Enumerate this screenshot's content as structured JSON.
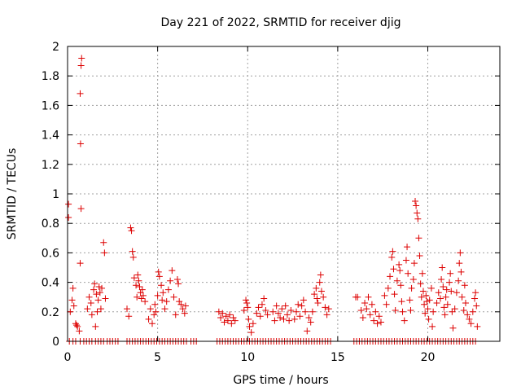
{
  "chart_data": {
    "type": "scatter",
    "title": "Day 221 of 2022, SRMTID for receiver djig",
    "xlabel": "GPS time / hours",
    "ylabel": "SRMTID / TECUs",
    "xlim": [
      0,
      24
    ],
    "ylim": [
      0,
      2
    ],
    "xticks": [
      0,
      5,
      10,
      15,
      20
    ],
    "xtick_labels": [
      "0",
      "5",
      "10",
      "15",
      "20"
    ],
    "yticks": [
      0,
      0.2,
      0.4,
      0.6,
      0.8,
      1,
      1.2,
      1.4,
      1.6,
      1.8,
      2
    ],
    "ytick_labels": [
      "0",
      "0.2",
      "0.4",
      "0.6",
      "0.8",
      "1",
      "1.2",
      "1.4",
      "1.6",
      "1.8",
      "2"
    ],
    "grid": true,
    "marker": "+",
    "color": "#dd0000",
    "series": [
      {
        "name": "SRMTID",
        "points": [
          [
            0.05,
            0.93
          ],
          [
            0.05,
            0.84
          ],
          [
            0.15,
            0.2
          ],
          [
            0.25,
            0.28
          ],
          [
            0.3,
            0.36
          ],
          [
            0.35,
            0.24
          ],
          [
            0.45,
            0.12
          ],
          [
            0.5,
            0.11
          ],
          [
            0.55,
            0.1
          ],
          [
            0.65,
            0.07
          ],
          [
            0.7,
            1.68
          ],
          [
            0.72,
            1.34
          ],
          [
            0.75,
            1.87
          ],
          [
            0.78,
            1.92
          ],
          [
            0.75,
            0.9
          ],
          [
            0.7,
            0.53
          ],
          [
            1.1,
            0.22
          ],
          [
            1.2,
            0.3
          ],
          [
            1.3,
            0.26
          ],
          [
            1.35,
            0.18
          ],
          [
            1.45,
            0.35
          ],
          [
            1.5,
            0.39
          ],
          [
            1.55,
            0.1
          ],
          [
            1.6,
            0.32
          ],
          [
            1.65,
            0.2
          ],
          [
            1.7,
            0.28
          ],
          [
            1.75,
            0.37
          ],
          [
            1.8,
            0.33
          ],
          [
            1.85,
            0.22
          ],
          [
            1.9,
            0.36
          ],
          [
            2.0,
            0.67
          ],
          [
            2.05,
            0.6
          ],
          [
            2.1,
            0.29
          ],
          [
            3.3,
            0.22
          ],
          [
            3.4,
            0.17
          ],
          [
            3.5,
            0.77
          ],
          [
            3.55,
            0.75
          ],
          [
            3.6,
            0.61
          ],
          [
            3.65,
            0.57
          ],
          [
            3.7,
            0.43
          ],
          [
            3.8,
            0.38
          ],
          [
            3.85,
            0.3
          ],
          [
            3.9,
            0.45
          ],
          [
            3.95,
            0.41
          ],
          [
            4.0,
            0.37
          ],
          [
            4.05,
            0.33
          ],
          [
            4.1,
            0.29
          ],
          [
            4.15,
            0.35
          ],
          [
            4.2,
            0.31
          ],
          [
            4.3,
            0.27
          ],
          [
            4.5,
            0.15
          ],
          [
            4.6,
            0.22
          ],
          [
            4.7,
            0.12
          ],
          [
            4.8,
            0.18
          ],
          [
            4.85,
            0.25
          ],
          [
            4.9,
            0.2
          ],
          [
            5.0,
            0.31
          ],
          [
            5.05,
            0.47
          ],
          [
            5.1,
            0.44
          ],
          [
            5.2,
            0.38
          ],
          [
            5.25,
            0.28
          ],
          [
            5.3,
            0.33
          ],
          [
            5.4,
            0.22
          ],
          [
            5.5,
            0.27
          ],
          [
            5.6,
            0.35
          ],
          [
            5.7,
            0.41
          ],
          [
            5.8,
            0.48
          ],
          [
            5.9,
            0.3
          ],
          [
            6.0,
            0.18
          ],
          [
            6.1,
            0.42
          ],
          [
            6.15,
            0.39
          ],
          [
            6.2,
            0.27
          ],
          [
            6.3,
            0.25
          ],
          [
            6.4,
            0.22
          ],
          [
            6.5,
            0.19
          ],
          [
            6.55,
            0.24
          ],
          [
            8.4,
            0.2
          ],
          [
            8.5,
            0.16
          ],
          [
            8.6,
            0.19
          ],
          [
            8.7,
            0.13
          ],
          [
            8.8,
            0.17
          ],
          [
            8.9,
            0.14
          ],
          [
            9.0,
            0.18
          ],
          [
            9.1,
            0.12
          ],
          [
            9.2,
            0.16
          ],
          [
            9.3,
            0.14
          ],
          [
            9.8,
            0.21
          ],
          [
            9.9,
            0.28
          ],
          [
            9.95,
            0.26
          ],
          [
            10.0,
            0.23
          ],
          [
            10.05,
            0.15
          ],
          [
            10.1,
            0.1
          ],
          [
            10.2,
            0.06
          ],
          [
            10.3,
            0.12
          ],
          [
            10.5,
            0.19
          ],
          [
            10.6,
            0.23
          ],
          [
            10.7,
            0.17
          ],
          [
            10.8,
            0.25
          ],
          [
            10.9,
            0.29
          ],
          [
            11.0,
            0.21
          ],
          [
            11.1,
            0.18
          ],
          [
            11.4,
            0.2
          ],
          [
            11.5,
            0.14
          ],
          [
            11.6,
            0.24
          ],
          [
            11.7,
            0.19
          ],
          [
            11.8,
            0.16
          ],
          [
            11.9,
            0.22
          ],
          [
            12.0,
            0.15
          ],
          [
            12.1,
            0.24
          ],
          [
            12.2,
            0.18
          ],
          [
            12.3,
            0.14
          ],
          [
            12.4,
            0.21
          ],
          [
            12.6,
            0.15
          ],
          [
            12.7,
            0.2
          ],
          [
            12.8,
            0.25
          ],
          [
            12.9,
            0.17
          ],
          [
            13.0,
            0.24
          ],
          [
            13.1,
            0.28
          ],
          [
            13.2,
            0.2
          ],
          [
            13.3,
            0.07
          ],
          [
            13.4,
            0.16
          ],
          [
            13.5,
            0.13
          ],
          [
            13.6,
            0.2
          ],
          [
            13.7,
            0.32
          ],
          [
            13.8,
            0.36
          ],
          [
            13.85,
            0.29
          ],
          [
            13.9,
            0.26
          ],
          [
            14.0,
            0.4
          ],
          [
            14.05,
            0.45
          ],
          [
            14.1,
            0.34
          ],
          [
            14.2,
            0.3
          ],
          [
            14.3,
            0.23
          ],
          [
            14.4,
            0.18
          ],
          [
            14.5,
            0.22
          ],
          [
            16.0,
            0.3
          ],
          [
            16.1,
            0.3
          ],
          [
            16.3,
            0.21
          ],
          [
            16.4,
            0.16
          ],
          [
            16.5,
            0.26
          ],
          [
            16.6,
            0.22
          ],
          [
            16.7,
            0.3
          ],
          [
            16.8,
            0.18
          ],
          [
            16.9,
            0.25
          ],
          [
            17.0,
            0.14
          ],
          [
            17.1,
            0.2
          ],
          [
            17.2,
            0.12
          ],
          [
            17.3,
            0.17
          ],
          [
            17.4,
            0.13
          ],
          [
            17.6,
            0.31
          ],
          [
            17.7,
            0.25
          ],
          [
            17.8,
            0.36
          ],
          [
            17.9,
            0.44
          ],
          [
            18.0,
            0.57
          ],
          [
            18.05,
            0.61
          ],
          [
            18.1,
            0.49
          ],
          [
            18.15,
            0.32
          ],
          [
            18.2,
            0.21
          ],
          [
            18.3,
            0.41
          ],
          [
            18.4,
            0.52
          ],
          [
            18.45,
            0.48
          ],
          [
            18.5,
            0.38
          ],
          [
            18.55,
            0.27
          ],
          [
            18.6,
            0.2
          ],
          [
            18.7,
            0.14
          ],
          [
            18.8,
            0.55
          ],
          [
            18.85,
            0.64
          ],
          [
            18.9,
            0.46
          ],
          [
            19.0,
            0.28
          ],
          [
            19.05,
            0.21
          ],
          [
            19.1,
            0.36
          ],
          [
            19.2,
            0.42
          ],
          [
            19.25,
            0.53
          ],
          [
            19.3,
            0.95
          ],
          [
            19.35,
            0.92
          ],
          [
            19.4,
            0.87
          ],
          [
            19.45,
            0.83
          ],
          [
            19.5,
            0.7
          ],
          [
            19.55,
            0.58
          ],
          [
            19.6,
            0.39
          ],
          [
            19.65,
            0.3
          ],
          [
            19.7,
            0.46
          ],
          [
            19.75,
            0.34
          ],
          [
            19.8,
            0.25
          ],
          [
            19.85,
            0.19
          ],
          [
            19.9,
            0.31
          ],
          [
            19.95,
            0.27
          ],
          [
            20.0,
            0.22
          ],
          [
            20.05,
            0.15
          ],
          [
            20.1,
            0.28
          ],
          [
            20.2,
            0.36
          ],
          [
            20.25,
            0.1
          ],
          [
            20.3,
            0.2
          ],
          [
            20.5,
            0.26
          ],
          [
            20.6,
            0.33
          ],
          [
            20.7,
            0.29
          ],
          [
            20.75,
            0.42
          ],
          [
            20.8,
            0.5
          ],
          [
            20.85,
            0.37
          ],
          [
            20.9,
            0.23
          ],
          [
            20.95,
            0.18
          ],
          [
            21.0,
            0.3
          ],
          [
            21.05,
            0.35
          ],
          [
            21.1,
            0.25
          ],
          [
            21.2,
            0.4
          ],
          [
            21.25,
            0.46
          ],
          [
            21.3,
            0.34
          ],
          [
            21.35,
            0.2
          ],
          [
            21.4,
            0.09
          ],
          [
            21.5,
            0.22
          ],
          [
            21.6,
            0.33
          ],
          [
            21.7,
            0.41
          ],
          [
            21.75,
            0.53
          ],
          [
            21.8,
            0.6
          ],
          [
            21.85,
            0.47
          ],
          [
            21.9,
            0.3
          ],
          [
            22.0,
            0.21
          ],
          [
            22.05,
            0.38
          ],
          [
            22.1,
            0.26
          ],
          [
            22.2,
            0.18
          ],
          [
            22.3,
            0.15
          ],
          [
            22.4,
            0.12
          ],
          [
            22.5,
            0.2
          ],
          [
            22.6,
            0.29
          ],
          [
            22.65,
            0.33
          ],
          [
            22.7,
            0.24
          ],
          [
            22.75,
            0.1
          ]
        ],
        "zeros": [
          0.1,
          0.3,
          0.45,
          0.7,
          0.9,
          1.05,
          1.2,
          1.35,
          1.55,
          1.7,
          1.85,
          2.0,
          2.2,
          2.35,
          2.5,
          2.65,
          2.8,
          3.3,
          3.45,
          3.6,
          3.75,
          3.9,
          4.05,
          4.2,
          4.35,
          4.5,
          4.65,
          4.8,
          4.95,
          5.1,
          5.25,
          5.4,
          5.55,
          5.7,
          5.85,
          6.0,
          6.15,
          6.3,
          6.45,
          6.6,
          6.85,
          7.0,
          7.15,
          8.3,
          8.45,
          8.6,
          8.75,
          8.9,
          9.05,
          9.2,
          9.35,
          9.5,
          9.65,
          9.8,
          9.95,
          10.1,
          10.25,
          10.4,
          10.55,
          10.7,
          10.85,
          11.0,
          11.15,
          11.3,
          11.45,
          11.6,
          11.75,
          11.9,
          12.05,
          12.2,
          12.35,
          12.5,
          12.65,
          12.8,
          12.95,
          13.1,
          13.25,
          13.4,
          13.55,
          13.7,
          13.85,
          14.0,
          14.15,
          14.3,
          14.45,
          14.6,
          15.9,
          16.05,
          16.2,
          16.35,
          16.5,
          16.65,
          16.8,
          16.95,
          17.1,
          17.25,
          17.4,
          17.55,
          17.7,
          17.85,
          18.0,
          18.15,
          18.3,
          18.45,
          18.6,
          18.75,
          18.9,
          19.05,
          19.2,
          19.35,
          19.5,
          19.65,
          19.8,
          19.95,
          20.1,
          20.25,
          20.4,
          20.55,
          20.7,
          20.85,
          21.0,
          21.15,
          21.3,
          21.45,
          21.6,
          21.75,
          21.9,
          22.05,
          22.2,
          22.35,
          22.5,
          22.65
        ]
      }
    ]
  }
}
